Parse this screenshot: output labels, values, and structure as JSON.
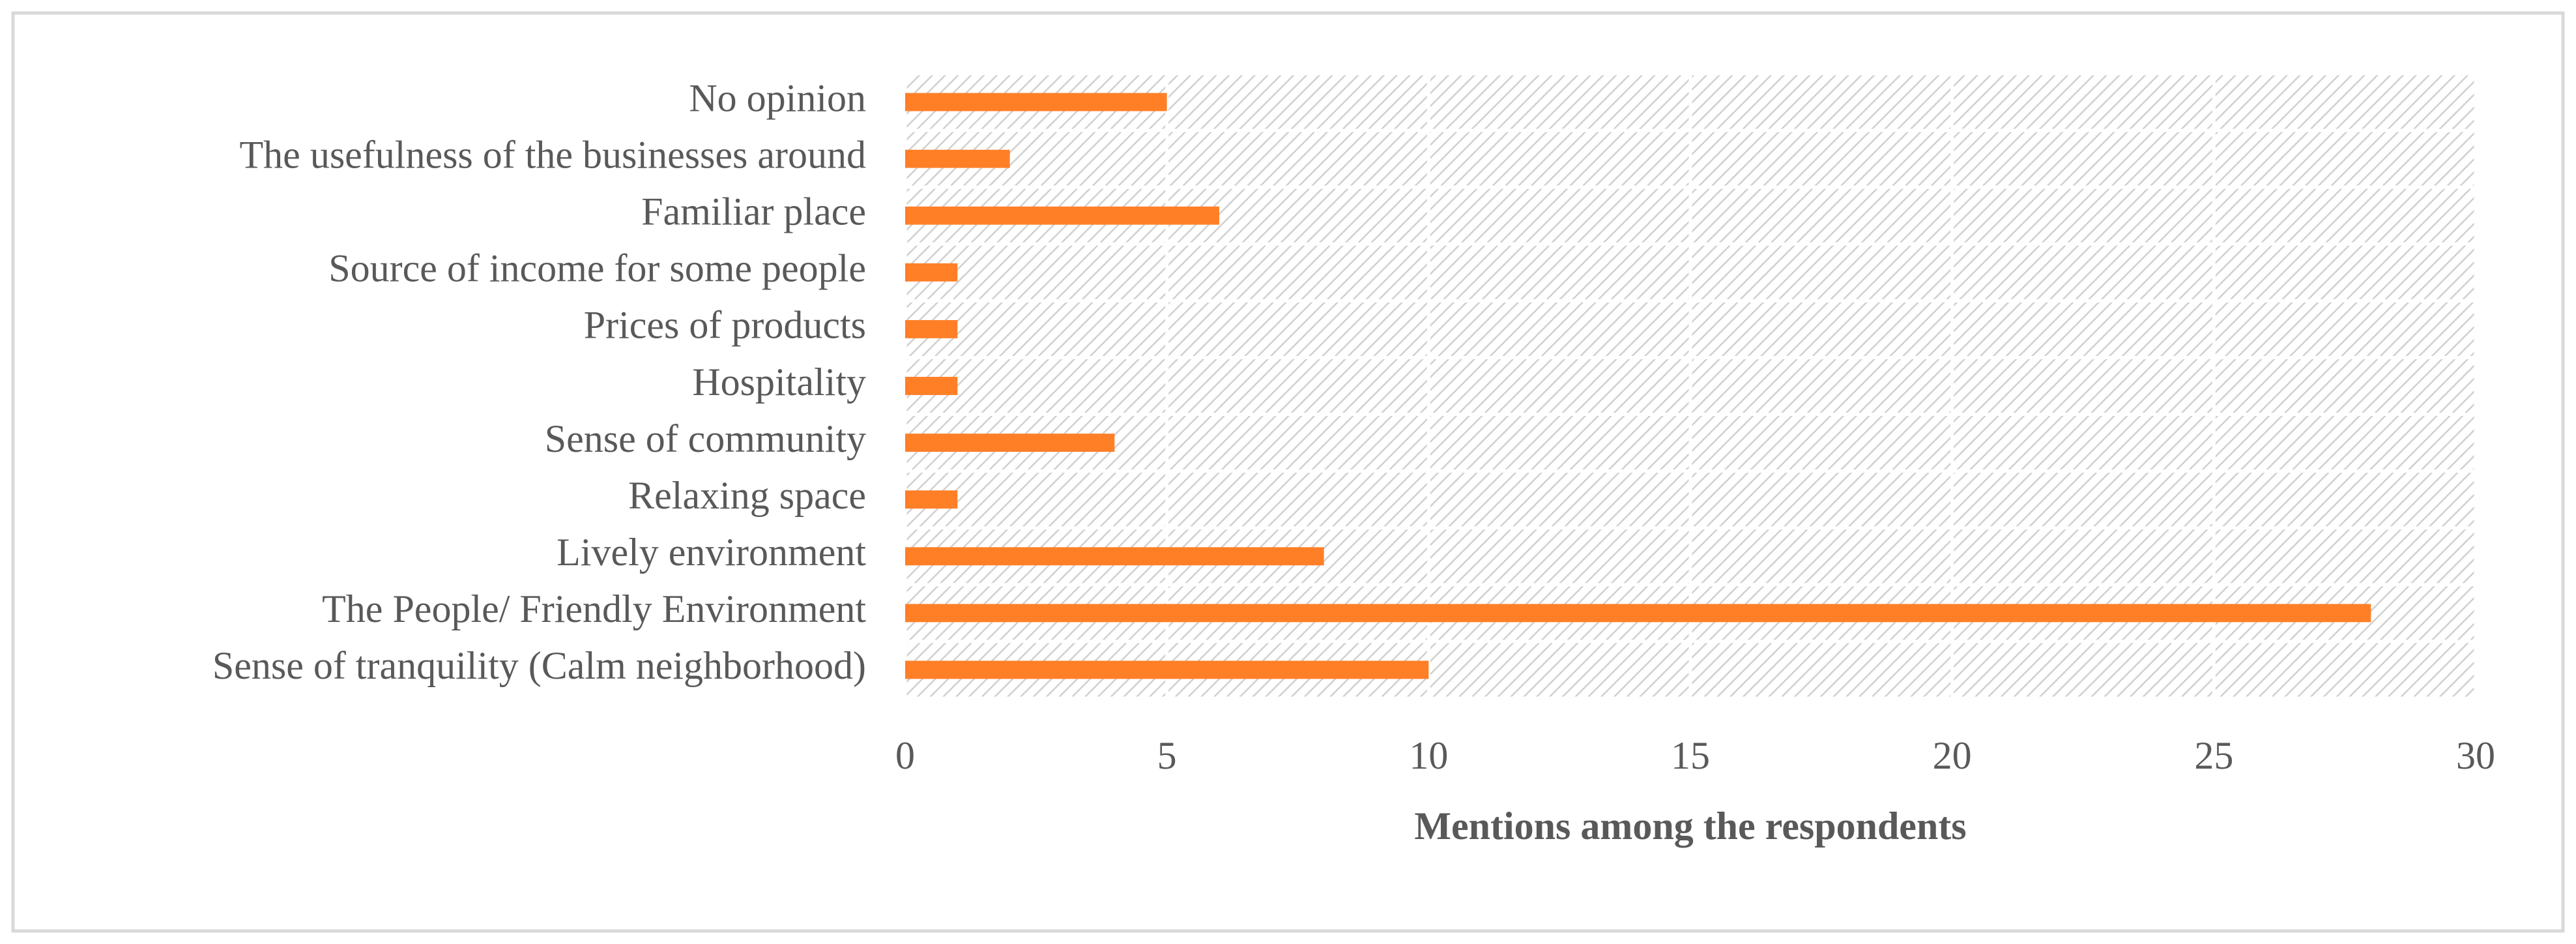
{
  "chart_data": {
    "type": "bar",
    "orientation": "horizontal",
    "x_label": "Mentions among the respondents",
    "categories": [
      "No opinion",
      "The usefulness of the businesses around",
      "Familiar place",
      "Source of income for some people",
      "Prices of products",
      "Hospitality",
      "Sense of community",
      "Relaxing space",
      "Lively environment",
      "The People/ Friendly Environment",
      "Sense of tranquility (Calm neighborhood)"
    ],
    "values": [
      5,
      2,
      6,
      1,
      1,
      1,
      4,
      1,
      8,
      28,
      10
    ],
    "color": "#ff7f27",
    "xlim": [
      0,
      30
    ],
    "xticks": [
      0,
      5,
      10,
      15,
      20,
      25,
      30
    ],
    "grid": true
  }
}
